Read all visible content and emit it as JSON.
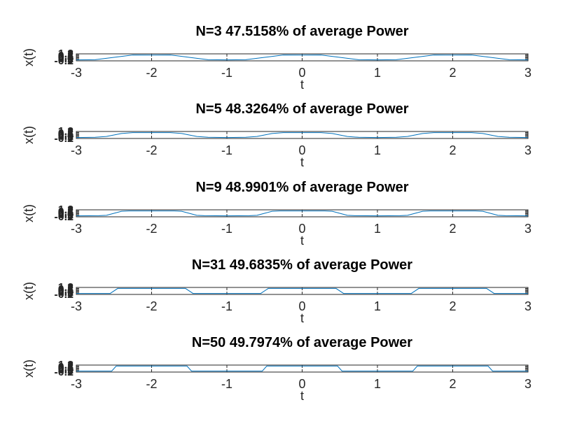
{
  "chart_data": [
    {
      "type": "line",
      "title": "N=3  47.5158% of average Power",
      "xlabel": "t",
      "ylabel": "x(t)",
      "xlim": [
        -3,
        3
      ],
      "ylim": [
        -0.2,
        1.2
      ],
      "x_ticks": [
        "-3",
        "-2",
        "-1",
        "0",
        "1",
        "2",
        "3"
      ],
      "y_ticks": [
        "-0.2",
        "0",
        "0.2",
        "0.4",
        "0.6",
        "0.8",
        "1",
        "1.2"
      ],
      "N": 3,
      "grid": false,
      "series": [
        {
          "color": "#0072BD",
          "x": [
            -3,
            -2.75,
            -2.5,
            -2.25,
            -2,
            -1.75,
            -1.5,
            -1.25,
            -1,
            -0.75,
            -0.5,
            -0.25,
            0,
            0.25,
            0.5,
            0.75,
            1,
            1.25,
            1.5,
            1.75,
            2,
            2.25,
            2.5,
            2.75,
            3
          ],
          "y": [
            0.0,
            0.02,
            0.5,
            0.98,
            0.95,
            0.98,
            0.5,
            0.02,
            0.0,
            0.02,
            0.5,
            0.98,
            0.95,
            0.98,
            0.5,
            0.02,
            0.0,
            0.02,
            0.5,
            0.98,
            0.95,
            0.98,
            0.5,
            0.02,
            0.0
          ]
        }
      ]
    },
    {
      "type": "line",
      "title": "N=5  48.3264% of average Power",
      "xlabel": "t",
      "ylabel": "x(t)",
      "xlim": [
        -3,
        3
      ],
      "ylim": [
        -0.2,
        1.2
      ],
      "x_ticks": [
        "-3",
        "-2",
        "-1",
        "0",
        "1",
        "2",
        "3"
      ],
      "y_ticks": [
        "-0.2",
        "0",
        "0.2",
        "0.4",
        "0.6",
        "0.8",
        "1",
        "1.2"
      ],
      "N": 5,
      "grid": false,
      "series": [
        {
          "color": "#0072BD",
          "x": [
            -3,
            -2.75,
            -2.6,
            -2.5,
            -2.4,
            -2.25,
            -2,
            -1.75,
            -1.6,
            -1.5,
            -1.4,
            -1.25,
            -1,
            -0.75,
            -0.6,
            -0.5,
            -0.4,
            -0.25,
            0,
            0.25,
            0.4,
            0.5,
            0.6,
            0.75,
            1,
            1.25,
            1.4,
            1.5,
            1.6,
            1.75,
            2,
            2.25,
            2.4,
            2.5,
            2.6,
            2.75,
            3
          ],
          "y": [
            0.0,
            0.04,
            0.2,
            0.5,
            0.8,
            0.98,
            0.97,
            0.98,
            0.8,
            0.5,
            0.2,
            0.04,
            0.0,
            0.04,
            0.2,
            0.5,
            0.8,
            0.98,
            0.97,
            0.98,
            0.8,
            0.5,
            0.2,
            0.04,
            0.0,
            0.04,
            0.2,
            0.5,
            0.8,
            0.98,
            0.97,
            0.98,
            0.8,
            0.5,
            0.2,
            0.04,
            0.0
          ]
        }
      ]
    },
    {
      "type": "line",
      "title": "N=9  48.9901% of average Power",
      "xlabel": "t",
      "ylabel": "x(t)",
      "xlim": [
        -3,
        3
      ],
      "ylim": [
        -0.2,
        1.2
      ],
      "x_ticks": [
        "-3",
        "-2",
        "-1",
        "0",
        "1",
        "2",
        "3"
      ],
      "y_ticks": [
        "-0.2",
        "0",
        "0.2",
        "0.4",
        "0.6",
        "0.8",
        "1",
        "1.2"
      ],
      "N": 9,
      "grid": false,
      "series": [
        {
          "color": "#0072BD",
          "x": [
            -3,
            -2.7,
            -2.6,
            -2.5,
            -2.4,
            -2.3,
            -2,
            -1.7,
            -1.6,
            -1.5,
            -1.4,
            -1.3,
            -1,
            -0.7,
            -0.6,
            -0.5,
            -0.4,
            -0.3,
            0,
            0.3,
            0.4,
            0.5,
            0.6,
            0.7,
            1,
            1.3,
            1.4,
            1.5,
            1.6,
            1.7,
            2,
            2.3,
            2.4,
            2.5,
            2.6,
            2.7,
            3
          ],
          "y": [
            0.0,
            0.03,
            0.1,
            0.5,
            0.9,
            0.97,
            0.98,
            0.97,
            0.9,
            0.5,
            0.1,
            0.03,
            0.0,
            0.03,
            0.1,
            0.5,
            0.9,
            0.97,
            0.98,
            0.97,
            0.9,
            0.5,
            0.1,
            0.03,
            0.0,
            0.03,
            0.1,
            0.5,
            0.9,
            0.97,
            0.98,
            0.97,
            0.9,
            0.5,
            0.1,
            0.03,
            0.0
          ]
        }
      ]
    },
    {
      "type": "line",
      "title": "N=31  49.6835% of average Power",
      "xlabel": "t",
      "ylabel": "x(t)",
      "xlim": [
        -3,
        3
      ],
      "ylim": [
        -0.2,
        1.2
      ],
      "x_ticks": [
        "-3",
        "-2",
        "-1",
        "0",
        "1",
        "2",
        "3"
      ],
      "y_ticks": [
        "-0.2",
        "0",
        "0.2",
        "0.4",
        "0.6",
        "0.8",
        "1",
        "1.2"
      ],
      "N": 31,
      "grid": false,
      "series": [
        {
          "color": "#0072BD",
          "x": [
            -3,
            -2.55,
            -2.45,
            -1.55,
            -1.45,
            -0.55,
            -0.45,
            0.45,
            0.55,
            1.45,
            1.55,
            2.45,
            2.55,
            3
          ],
          "y": [
            0.0,
            0.0,
            1.0,
            1.0,
            0.0,
            0.0,
            1.0,
            1.0,
            0.0,
            0.0,
            1.0,
            1.0,
            0.0,
            0.0
          ]
        }
      ]
    },
    {
      "type": "line",
      "title": "N=50  49.7974% of average Power",
      "xlabel": "t",
      "ylabel": "x(t)",
      "xlim": [
        -3,
        3
      ],
      "ylim": [
        -0.2,
        1.2
      ],
      "x_ticks": [
        "-3",
        "-2",
        "-1",
        "0",
        "1",
        "2",
        "3"
      ],
      "y_ticks": [
        "-0.2",
        "0",
        "0.2",
        "0.4",
        "0.6",
        "0.8",
        "1",
        "1.2"
      ],
      "N": 50,
      "grid": false,
      "series": [
        {
          "color": "#0072BD",
          "x": [
            -3,
            -2.53,
            -2.47,
            -1.53,
            -1.47,
            -0.53,
            -0.47,
            0.47,
            0.53,
            1.47,
            1.53,
            2.47,
            2.53,
            3
          ],
          "y": [
            0.0,
            0.0,
            1.0,
            1.0,
            0.0,
            0.0,
            1.0,
            1.0,
            0.0,
            0.0,
            1.0,
            1.0,
            0.0,
            0.0
          ]
        }
      ]
    }
  ]
}
